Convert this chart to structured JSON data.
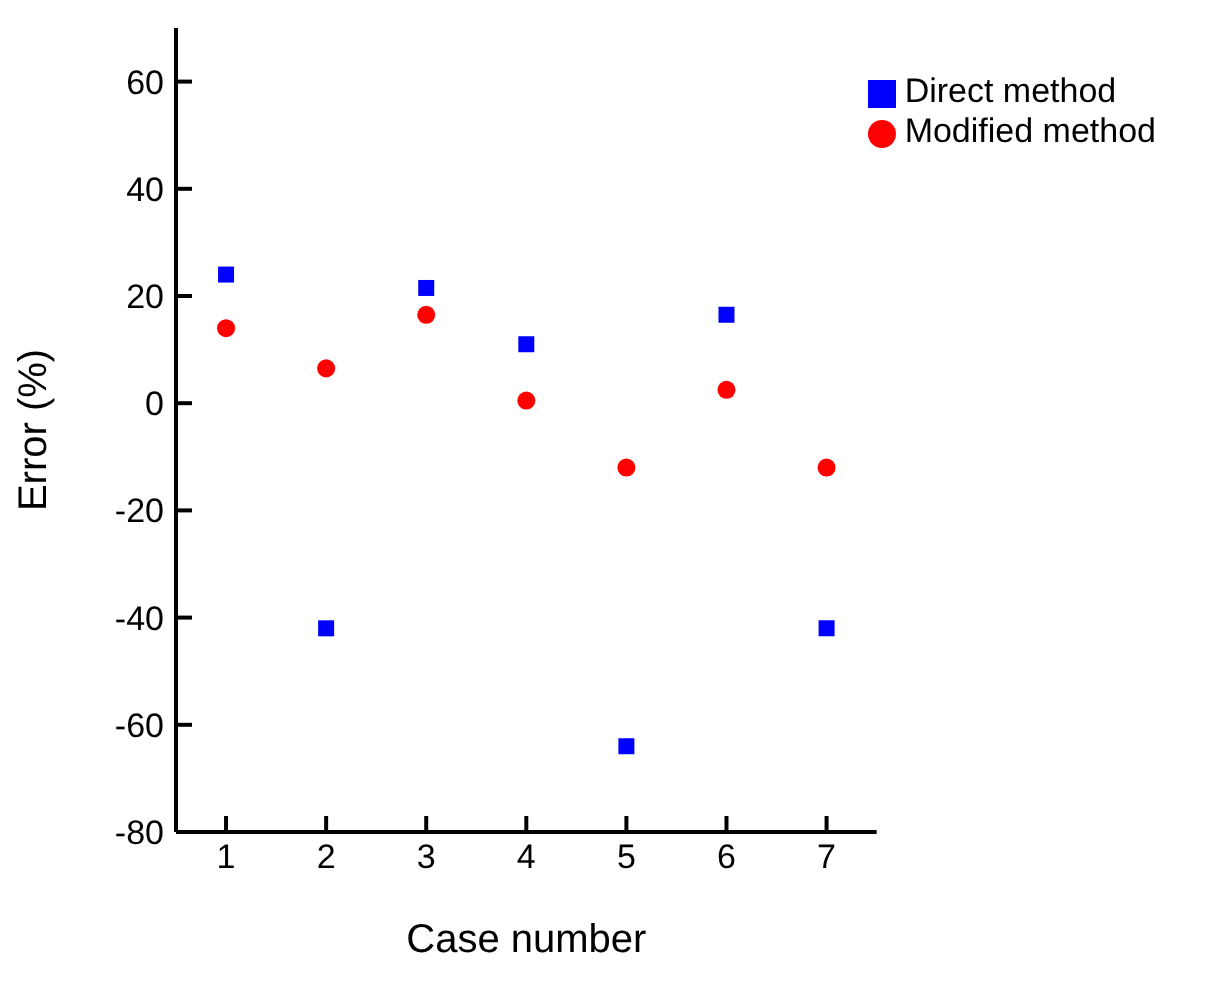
{
  "chart_data": {
    "type": "scatter",
    "xlabel": "Case number",
    "ylabel": "Error (%)",
    "x": [
      1,
      2,
      3,
      4,
      5,
      6,
      7
    ],
    "xlim": [
      0.5,
      7.5
    ],
    "xticks": [
      1,
      2,
      3,
      4,
      5,
      6,
      7
    ],
    "ylim": [
      -80,
      70
    ],
    "yticks": [
      -80,
      -60,
      -40,
      -20,
      0,
      20,
      40,
      60
    ],
    "grid": false,
    "legend": "top right",
    "series": [
      {
        "name": "Direct method",
        "color": "#0000ff",
        "marker": "square",
        "values": [
          24,
          -42,
          21.5,
          11,
          -64,
          16.5,
          -42
        ]
      },
      {
        "name": "Modified method",
        "color": "#ff0000",
        "marker": "circle",
        "values": [
          14,
          6.5,
          16.5,
          0.5,
          -12,
          2.5,
          -12
        ]
      }
    ]
  }
}
